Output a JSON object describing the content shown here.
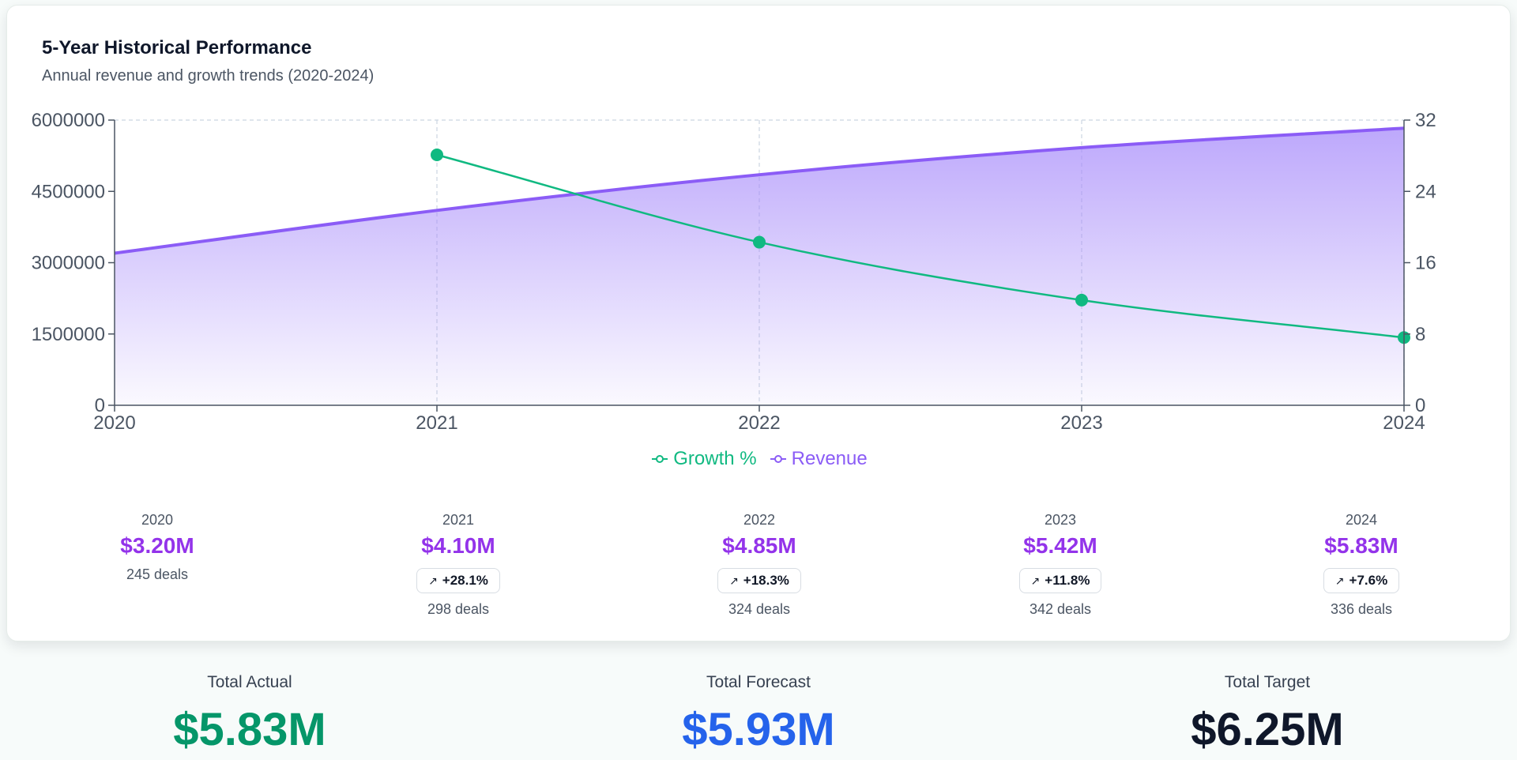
{
  "card": {
    "title": "5-Year Historical Performance",
    "subtitle": "Annual revenue and growth trends (2020-2024)"
  },
  "colors": {
    "revenue": "#9333ea",
    "revenue_line": "#8b5cf6",
    "growth": "#10b981",
    "actual": "#059669",
    "forecast": "#2563eb",
    "target": "#0f172a"
  },
  "legend": {
    "growth": "Growth %",
    "revenue": "Revenue"
  },
  "chart_data": {
    "type": "area+line",
    "x": [
      "2020",
      "2021",
      "2022",
      "2023",
      "2024"
    ],
    "series": [
      {
        "name": "Revenue",
        "axis": "left",
        "values": [
          3200000,
          4100000,
          4850000,
          5420000,
          5830000
        ]
      },
      {
        "name": "Growth %",
        "axis": "right",
        "values": [
          null,
          28.1,
          18.3,
          11.8,
          7.6
        ]
      }
    ],
    "y_left": {
      "ylim": [
        0,
        6000000
      ],
      "ticks": [
        "0",
        "1500000",
        "3000000",
        "4500000",
        "6000000"
      ]
    },
    "y_right": {
      "ylim": [
        0,
        32
      ],
      "ticks": [
        "0",
        "8",
        "16",
        "24",
        "32"
      ]
    },
    "grid": "vertical dashed",
    "legend_position": "bottom-center"
  },
  "stats": [
    {
      "year": "2020",
      "value": "$3.20M",
      "change": "",
      "deals": "245 deals"
    },
    {
      "year": "2021",
      "value": "$4.10M",
      "change": "+28.1%",
      "deals": "298 deals"
    },
    {
      "year": "2022",
      "value": "$4.85M",
      "change": "+18.3%",
      "deals": "324 deals"
    },
    {
      "year": "2023",
      "value": "$5.42M",
      "change": "+11.8%",
      "deals": "342 deals"
    },
    {
      "year": "2024",
      "value": "$5.83M",
      "change": "+7.6%",
      "deals": "336 deals"
    }
  ],
  "totals": {
    "actual": {
      "label": "Total Actual",
      "value": "$5.83M"
    },
    "forecast": {
      "label": "Total Forecast",
      "value": "$5.93M"
    },
    "target": {
      "label": "Total Target",
      "value": "$6.25M"
    }
  }
}
